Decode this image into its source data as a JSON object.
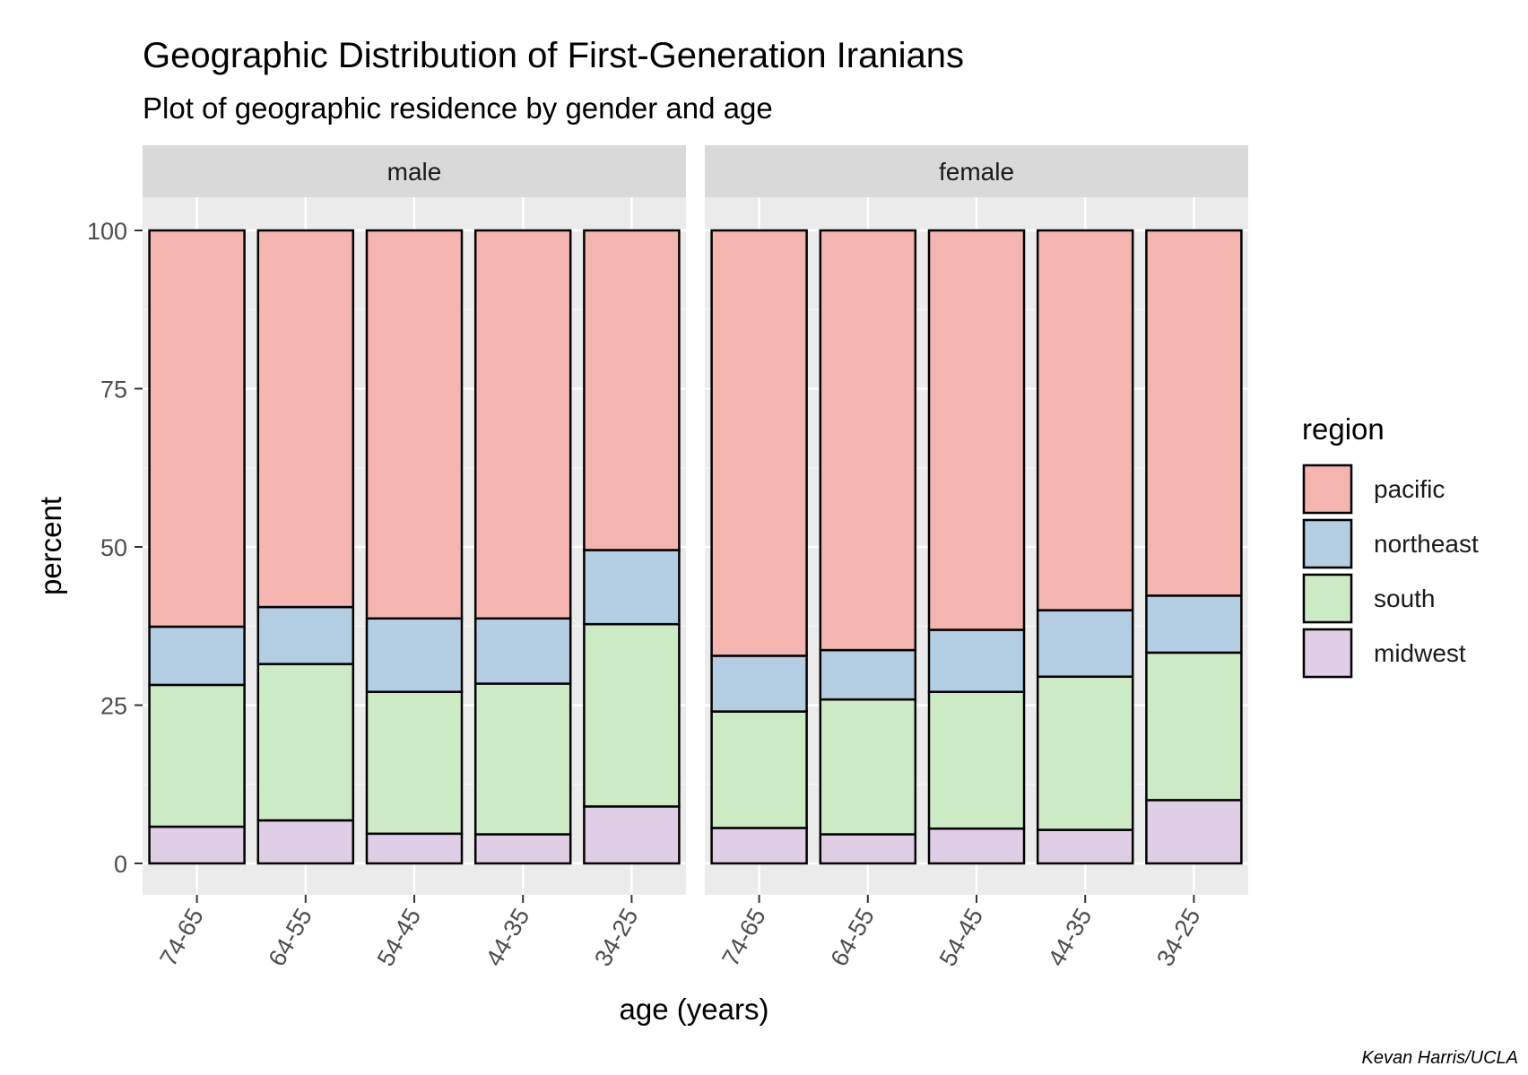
{
  "chart_data": {
    "type": "bar",
    "title": "Geographic Distribution of First-Generation Iranians",
    "subtitle": "Plot of geographic residence by gender and age",
    "xlabel": "age (years)",
    "ylabel": "percent",
    "caption": "Kevan Harris/UCLA",
    "ylim": [
      0,
      100
    ],
    "yticks": [
      "0",
      "25",
      "50",
      "75",
      "100"
    ],
    "categories": [
      "74-65",
      "64-55",
      "54-45",
      "44-35",
      "34-25"
    ],
    "legend": {
      "title": "region",
      "position": "right"
    },
    "stacked": true,
    "series_colors": {
      "midwest": "#e0cde6",
      "south": "#ccebc5",
      "northeast": "#b3cde3",
      "pacific": "#f4b4af"
    },
    "legend_order": [
      "pacific",
      "northeast",
      "south",
      "midwest"
    ],
    "stack_order": [
      "midwest",
      "south",
      "northeast",
      "pacific"
    ],
    "panels": [
      {
        "label": "male",
        "series": [
          {
            "name": "midwest",
            "values": [
              5.8,
              6.8,
              4.7,
              4.6,
              9.0
            ]
          },
          {
            "name": "south",
            "values": [
              22.4,
              24.7,
              22.4,
              23.8,
              28.8
            ]
          },
          {
            "name": "northeast",
            "values": [
              9.2,
              9.0,
              11.6,
              10.3,
              11.7
            ]
          },
          {
            "name": "pacific",
            "values": [
              62.6,
              59.5,
              61.3,
              61.3,
              50.5
            ]
          }
        ]
      },
      {
        "label": "female",
        "series": [
          {
            "name": "midwest",
            "values": [
              5.6,
              4.6,
              5.5,
              5.3,
              10.0
            ]
          },
          {
            "name": "south",
            "values": [
              18.4,
              21.3,
              21.6,
              24.2,
              23.3
            ]
          },
          {
            "name": "northeast",
            "values": [
              8.8,
              7.8,
              9.8,
              10.5,
              9.0
            ]
          },
          {
            "name": "pacific",
            "values": [
              67.2,
              66.3,
              63.1,
              60.0,
              57.7
            ]
          }
        ]
      }
    ],
    "grid": true
  }
}
